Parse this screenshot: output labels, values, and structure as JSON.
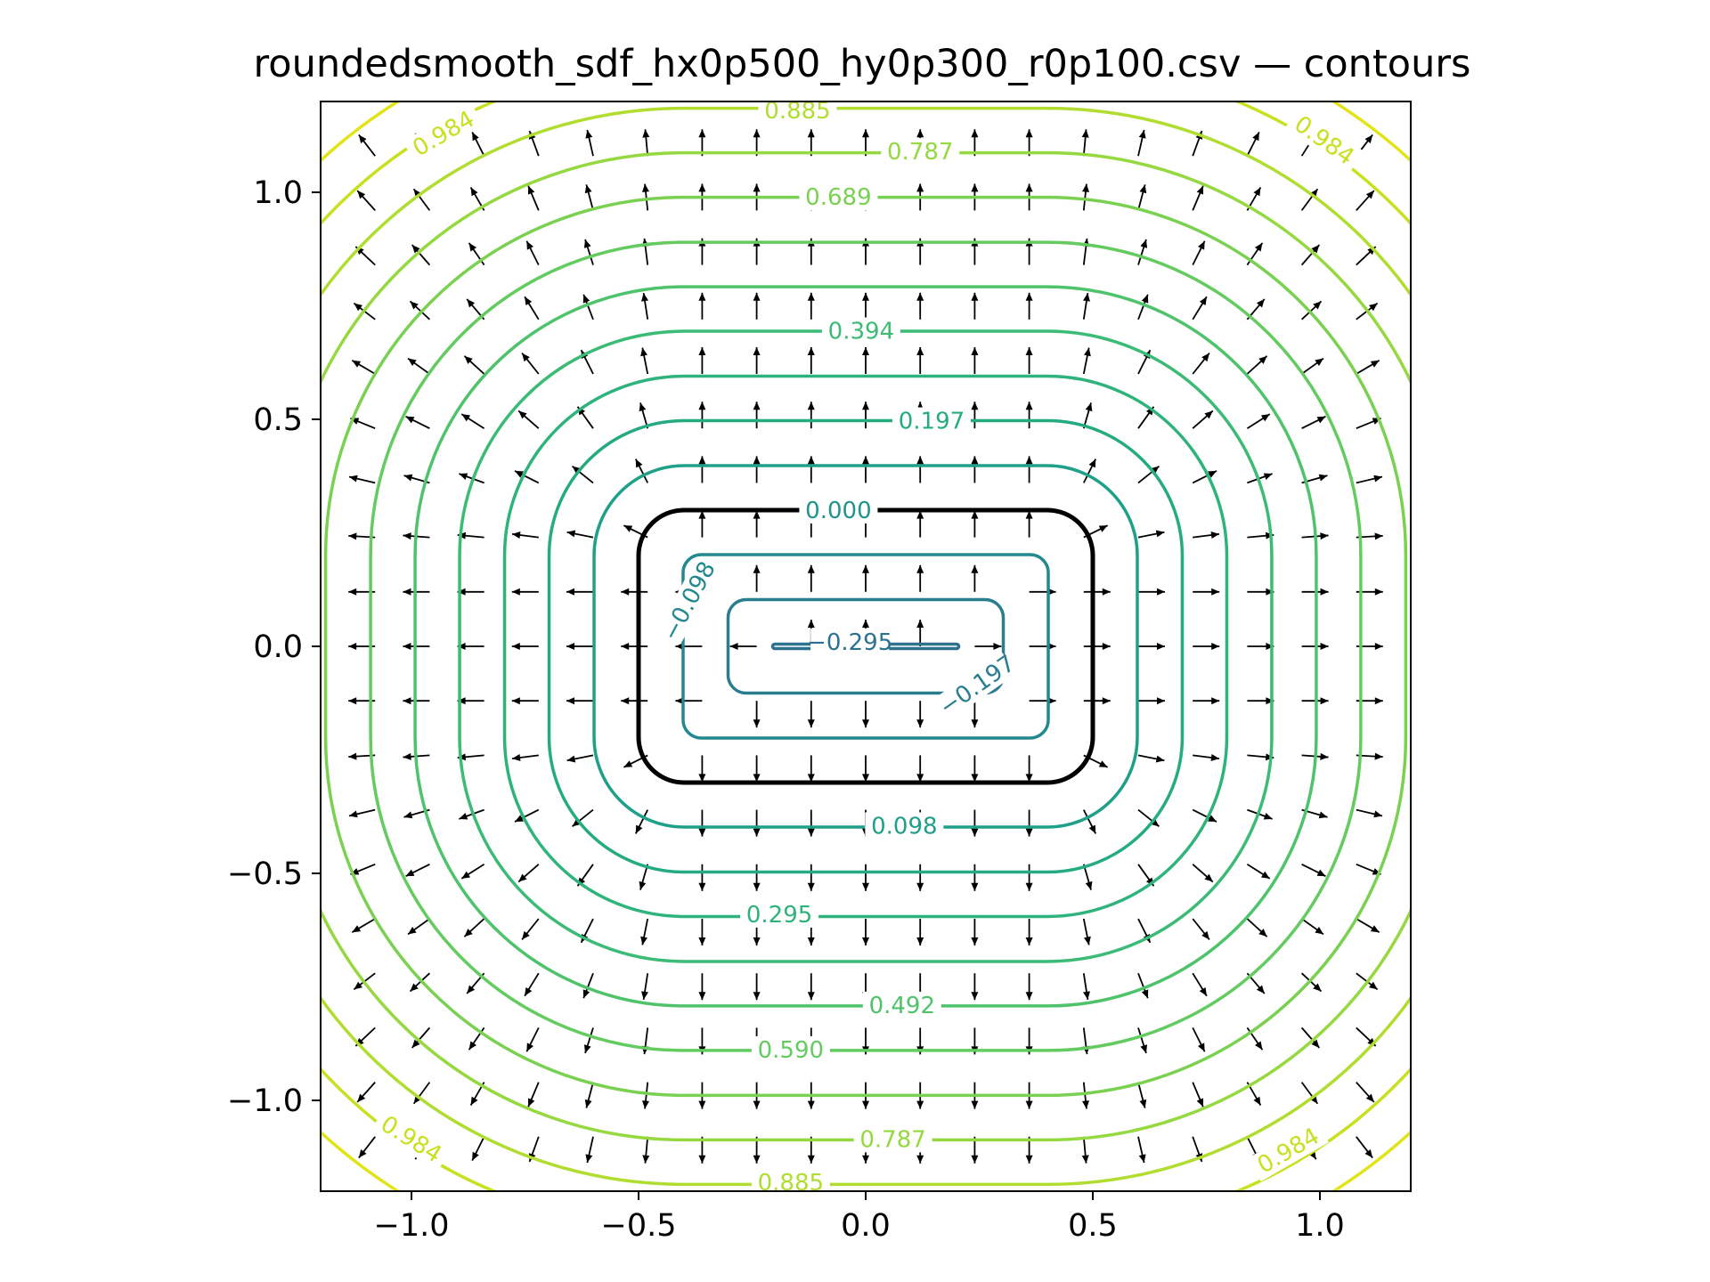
{
  "chart_data": {
    "type": "contour",
    "title": "roundedsmooth_sdf_hx0p500_hy0p300_r0p100.csv — contours",
    "xlabel": "",
    "ylabel": "",
    "xlim": [
      -1.2,
      1.2
    ],
    "ylim": [
      -1.2,
      1.2
    ],
    "xticks": [
      -1.0,
      -0.5,
      0.0,
      0.5,
      1.0
    ],
    "yticks": [
      -1.0,
      -0.5,
      0.0,
      0.5,
      1.0
    ],
    "xtick_labels": [
      "−1.0",
      "−0.5",
      "0.0",
      "0.5",
      "1.0"
    ],
    "ytick_labels": [
      "1.0",
      "0.5",
      "0.0",
      "−0.5",
      "−1.0"
    ],
    "grid": false,
    "shape": {
      "hx": 0.5,
      "hy": 0.3,
      "r": 0.1
    },
    "colormap": "viridis",
    "zero_contour_color": "#000000",
    "levels": [
      {
        "value": -0.295,
        "label": "−0.295",
        "color": "#2c728e"
      },
      {
        "value": -0.197,
        "label": "−0.197",
        "color": "#287d8e"
      },
      {
        "value": -0.098,
        "label": "−0.098",
        "color": "#23898e"
      },
      {
        "value": 0.0,
        "label": "0.000",
        "color": "#1f948c"
      },
      {
        "value": 0.098,
        "label": "0.098",
        "color": "#1fa088"
      },
      {
        "value": 0.197,
        "label": "0.197",
        "color": "#25ab82"
      },
      {
        "value": 0.295,
        "label": "0.295",
        "color": "#2eb37c"
      },
      {
        "value": 0.394,
        "label": "0.394",
        "color": "#3bbb75"
      },
      {
        "value": 0.492,
        "label": "0.492",
        "color": "#4ec36b"
      },
      {
        "value": 0.59,
        "label": "0.590",
        "color": "#63cb5f"
      },
      {
        "value": 0.689,
        "label": "0.689",
        "color": "#7ad151"
      },
      {
        "value": 0.787,
        "label": "0.787",
        "color": "#95d840"
      },
      {
        "value": 0.885,
        "label": "0.885",
        "color": "#b0dd2f"
      },
      {
        "value": 0.984,
        "label": "0.984",
        "color": "#c8e020"
      },
      {
        "value": 1.082,
        "label": "",
        "color": "#e2e418"
      }
    ],
    "contour_labels": [
      {
        "text": "0.885",
        "x": -0.15,
        "y": 1.18,
        "rot": 0,
        "color": "#b0dd2f"
      },
      {
        "text": "0.787",
        "x": 0.12,
        "y": 1.09,
        "rot": 0,
        "color": "#95d840"
      },
      {
        "text": "0.689",
        "x": -0.06,
        "y": 0.99,
        "rot": 0,
        "color": "#7ad151"
      },
      {
        "text": "0.394",
        "x": -0.01,
        "y": 0.695,
        "rot": 0,
        "color": "#3bbb75"
      },
      {
        "text": "0.197",
        "x": 0.145,
        "y": 0.497,
        "rot": 0,
        "color": "#25ab82"
      },
      {
        "text": "0.000",
        "x": -0.06,
        "y": 0.3,
        "rot": 0,
        "color": "#1f948c"
      },
      {
        "text": "0.098",
        "x": 0.085,
        "y": -0.395,
        "rot": 0,
        "color": "#1fa088"
      },
      {
        "text": "0.295",
        "x": -0.19,
        "y": -0.59,
        "rot": 0,
        "color": "#2eb37c"
      },
      {
        "text": "0.492",
        "x": 0.08,
        "y": -0.79,
        "rot": 0,
        "color": "#4ec36b"
      },
      {
        "text": "0.590",
        "x": -0.165,
        "y": -0.888,
        "rot": 0,
        "color": "#63cb5f"
      },
      {
        "text": "0.787",
        "x": 0.06,
        "y": -1.085,
        "rot": 0,
        "color": "#95d840"
      },
      {
        "text": "0.885",
        "x": -0.165,
        "y": -1.18,
        "rot": 0,
        "color": "#b0dd2f"
      },
      {
        "text": "−0.098",
        "x": -0.39,
        "y": 0.1,
        "rot": -62,
        "color": "#23898e"
      },
      {
        "text": "−0.197",
        "x": 0.245,
        "y": -0.085,
        "rot": -35,
        "color": "#287d8e"
      },
      {
        "text": "−0.295",
        "x": -0.035,
        "y": 0.01,
        "rot": 0,
        "color": "#2c728e"
      },
      {
        "text": "0.984",
        "x": -0.93,
        "y": 1.13,
        "rot": -30,
        "color": "#c8e020"
      },
      {
        "text": "0.984",
        "x": 1.01,
        "y": 1.115,
        "rot": 35,
        "color": "#c8e020"
      },
      {
        "text": "0.984",
        "x": -1.0,
        "y": -1.085,
        "rot": 32,
        "color": "#c8e020"
      },
      {
        "text": "0.984",
        "x": 0.93,
        "y": -1.11,
        "rot": -30,
        "color": "#c8e020"
      }
    ],
    "vector_field": {
      "type": "quiver",
      "x": [
        -1.2,
        -1.08,
        -0.96,
        -0.84,
        -0.72,
        -0.6,
        -0.48,
        -0.36,
        -0.24,
        -0.12,
        0.0,
        0.12,
        0.24,
        0.36,
        0.48,
        0.6,
        0.72,
        0.84,
        0.96,
        1.08
      ],
      "y": [
        -1.08,
        -0.96,
        -0.84,
        -0.72,
        -0.6,
        -0.48,
        -0.36,
        -0.24,
        -0.12,
        0.0,
        0.12,
        0.24,
        0.36,
        0.48,
        0.6,
        0.72,
        0.84,
        0.96,
        1.08
      ],
      "field": "gradient",
      "color": "#000000"
    }
  }
}
